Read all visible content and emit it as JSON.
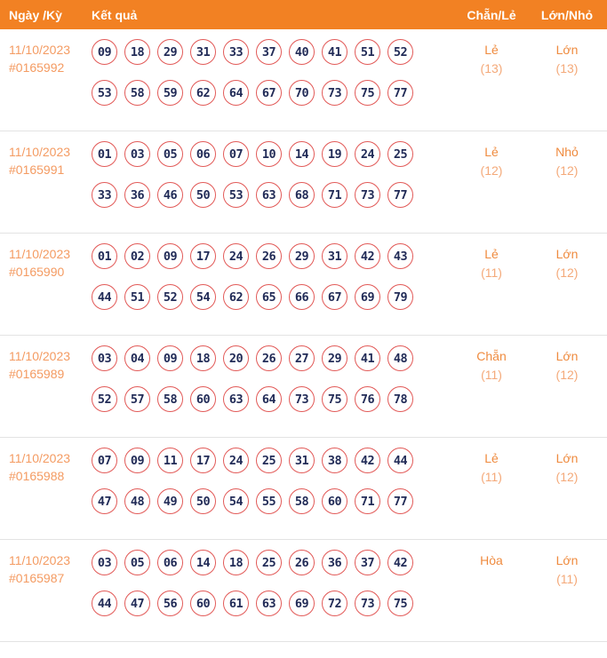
{
  "header": {
    "columns": {
      "date": "Ngày /Kỳ",
      "result": "Kết quả",
      "parity": "Chẵn/Lẻ",
      "size": "Lớn/Nhỏ"
    }
  },
  "colors": {
    "header_bg": "#F28123",
    "date_text": "#F49B62",
    "result_word": "#EF8B3F",
    "result_count": "#F4A979",
    "ball_border": "#E25A58",
    "ball_number": "#212B57",
    "row_divider": "#E3E3E3"
  },
  "rows": [
    {
      "date": "11/10/2023",
      "period": "#0165992",
      "line1": [
        "09",
        "18",
        "29",
        "31",
        "33",
        "37",
        "40",
        "41",
        "51",
        "52"
      ],
      "line2": [
        "53",
        "58",
        "59",
        "62",
        "64",
        "67",
        "70",
        "73",
        "75",
        "77"
      ],
      "parity": "Lẻ",
      "parity_count": "(13)",
      "size": "Lớn",
      "size_count": "(13)"
    },
    {
      "date": "11/10/2023",
      "period": "#0165991",
      "line1": [
        "01",
        "03",
        "05",
        "06",
        "07",
        "10",
        "14",
        "19",
        "24",
        "25"
      ],
      "line2": [
        "33",
        "36",
        "46",
        "50",
        "53",
        "63",
        "68",
        "71",
        "73",
        "77"
      ],
      "parity": "Lẻ",
      "parity_count": "(12)",
      "size": "Nhỏ",
      "size_count": "(12)"
    },
    {
      "date": "11/10/2023",
      "period": "#0165990",
      "line1": [
        "01",
        "02",
        "09",
        "17",
        "24",
        "26",
        "29",
        "31",
        "42",
        "43"
      ],
      "line2": [
        "44",
        "51",
        "52",
        "54",
        "62",
        "65",
        "66",
        "67",
        "69",
        "79"
      ],
      "parity": "Lẻ",
      "parity_count": "(11)",
      "size": "Lớn",
      "size_count": "(12)"
    },
    {
      "date": "11/10/2023",
      "period": "#0165989",
      "line1": [
        "03",
        "04",
        "09",
        "18",
        "20",
        "26",
        "27",
        "29",
        "41",
        "48"
      ],
      "line2": [
        "52",
        "57",
        "58",
        "60",
        "63",
        "64",
        "73",
        "75",
        "76",
        "78"
      ],
      "parity": "Chẵn",
      "parity_count": "(11)",
      "size": "Lớn",
      "size_count": "(12)"
    },
    {
      "date": "11/10/2023",
      "period": "#0165988",
      "line1": [
        "07",
        "09",
        "11",
        "17",
        "24",
        "25",
        "31",
        "38",
        "42",
        "44"
      ],
      "line2": [
        "47",
        "48",
        "49",
        "50",
        "54",
        "55",
        "58",
        "60",
        "71",
        "77"
      ],
      "parity": "Lẻ",
      "parity_count": "(11)",
      "size": "Lớn",
      "size_count": "(12)"
    },
    {
      "date": "11/10/2023",
      "period": "#0165987",
      "line1": [
        "03",
        "05",
        "06",
        "14",
        "18",
        "25",
        "26",
        "36",
        "37",
        "42"
      ],
      "line2": [
        "44",
        "47",
        "56",
        "60",
        "61",
        "63",
        "69",
        "72",
        "73",
        "75"
      ],
      "parity": "Hòa",
      "parity_count": "",
      "size": "Lớn",
      "size_count": "(11)"
    }
  ]
}
